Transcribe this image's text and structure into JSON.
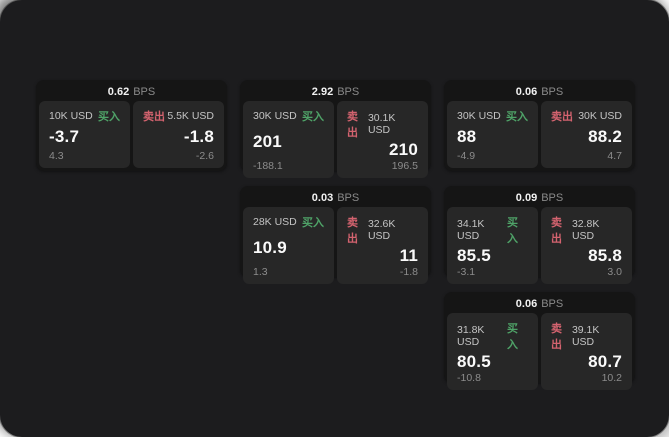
{
  "labels": {
    "bps": "BPS",
    "buy": "买入",
    "sell": "卖出"
  },
  "colors": {
    "buy": "#4fa368",
    "sell": "#d4636f",
    "panel_background": "#1c1c1e",
    "card_background": "#151515",
    "tile_background": "#272727"
  },
  "cards": [
    {
      "col": 1,
      "row": 1,
      "bps": "0.62",
      "buy": {
        "notional": "10K USD",
        "value": "-3.7",
        "sub": "4.3"
      },
      "sell": {
        "notional": "5.5K USD",
        "value": "-1.8",
        "sub": "-2.6"
      }
    },
    {
      "col": 2,
      "row": 1,
      "bps": "2.92",
      "buy": {
        "notional": "30K USD",
        "value": "201",
        "sub": "-188.1"
      },
      "sell": {
        "notional": "30.1K USD",
        "value": "210",
        "sub": "196.5"
      }
    },
    {
      "col": 3,
      "row": 1,
      "bps": "0.06",
      "buy": {
        "notional": "30K USD",
        "value": "88",
        "sub": "-4.9"
      },
      "sell": {
        "notional": "30K USD",
        "value": "88.2",
        "sub": "4.7"
      }
    },
    {
      "col": 2,
      "row": 2,
      "bps": "0.03",
      "buy": {
        "notional": "28K USD",
        "value": "10.9",
        "sub": "1.3"
      },
      "sell": {
        "notional": "32.6K USD",
        "value": "11",
        "sub": "-1.8"
      }
    },
    {
      "col": 3,
      "row": 2,
      "bps": "0.09",
      "buy": {
        "notional": "34.1K USD",
        "value": "85.5",
        "sub": "-3.1"
      },
      "sell": {
        "notional": "32.8K USD",
        "value": "85.8",
        "sub": "3.0"
      }
    },
    {
      "col": 3,
      "row": 3,
      "bps": "0.06",
      "buy": {
        "notional": "31.8K USD",
        "value": "80.5",
        "sub": "-10.8"
      },
      "sell": {
        "notional": "39.1K USD",
        "value": "80.7",
        "sub": "10.2"
      }
    }
  ]
}
